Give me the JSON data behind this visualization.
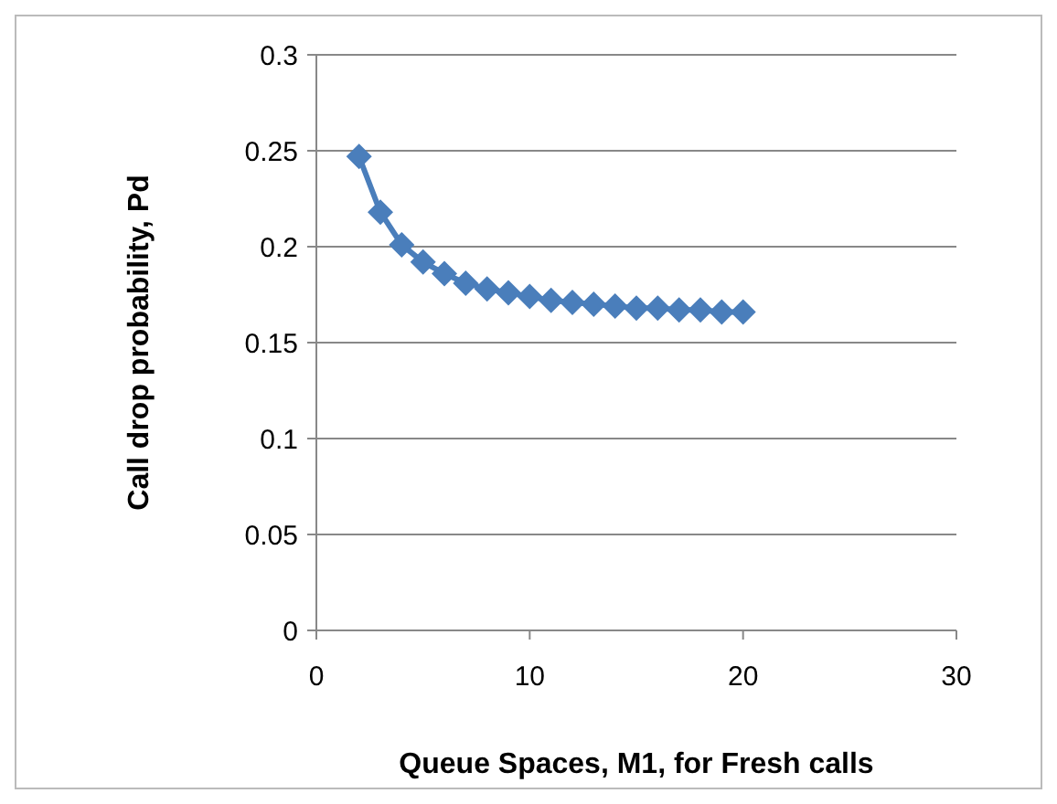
{
  "chart_data": {
    "type": "line",
    "xlabel": "Queue Spaces, M1, for Fresh calls",
    "ylabel": "Call drop probability,  Pd",
    "x": [
      2,
      3,
      4,
      5,
      6,
      7,
      8,
      9,
      10,
      11,
      12,
      13,
      14,
      15,
      16,
      17,
      18,
      19,
      20
    ],
    "series": [
      {
        "color": "#4a7ebb",
        "values": [
          0.247,
          0.218,
          0.201,
          0.192,
          0.186,
          0.181,
          0.178,
          0.176,
          0.174,
          0.172,
          0.171,
          0.17,
          0.169,
          0.168,
          0.168,
          0.167,
          0.167,
          0.166,
          0.166
        ]
      }
    ],
    "xlim": [
      0,
      30
    ],
    "xticks": [
      0,
      10,
      20,
      30
    ],
    "ylim": [
      0,
      0.3
    ],
    "yticks": [
      0,
      0.05,
      0.1,
      0.15,
      0.2,
      0.25,
      0.3
    ],
    "grid": "y",
    "marker": "diamond",
    "line_style": "solid"
  }
}
